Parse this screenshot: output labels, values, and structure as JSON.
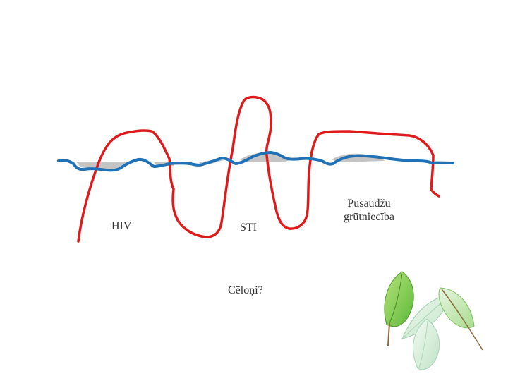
{
  "diagram": {
    "labels": {
      "hiv": "HIV",
      "sti": "STI",
      "pregnancy_line1": "Pusaudžu",
      "pregnancy_line2": "grūtniecība",
      "causes": "Cēloņi?"
    },
    "colors": {
      "waterline": "#1f72b8",
      "submerged_shading": "#c4c4c4",
      "iceberg_outline": "#e01a1a",
      "leaf_green": "#8ccf4a",
      "leaf_pale": "#dff0df",
      "text": "#333333"
    },
    "decoration": {
      "icon": "leaves-icon"
    }
  }
}
